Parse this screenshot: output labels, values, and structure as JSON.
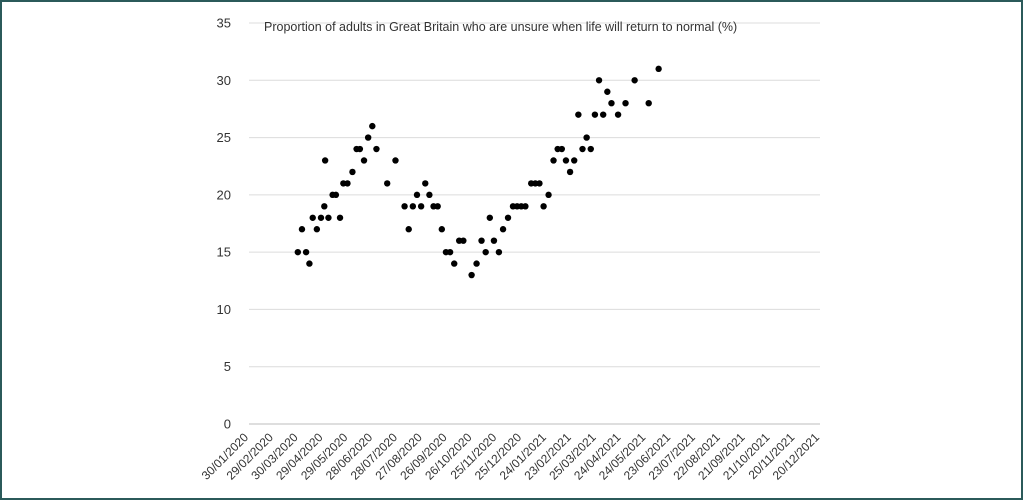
{
  "chart_data": {
    "type": "scatter",
    "title": "Proportion of adults in Great Britain who are unsure when life will return to normal (%)",
    "xlabel": "",
    "ylabel": "",
    "ylim": [
      0,
      35
    ],
    "yticks": [
      0,
      5,
      10,
      15,
      20,
      25,
      30,
      35
    ],
    "xlim": [
      "30/01/2020",
      "20/12/2021"
    ],
    "xtick_labels": [
      "30/01/2020",
      "29/02/2020",
      "30/03/2020",
      "29/04/2020",
      "29/05/2020",
      "28/06/2020",
      "28/07/2020",
      "27/08/2020",
      "26/09/2020",
      "26/10/2020",
      "25/11/2020",
      "25/12/2020",
      "24/01/2021",
      "23/02/2021",
      "25/03/2021",
      "24/04/2021",
      "24/05/2021",
      "23/06/2021",
      "23/07/2021",
      "22/08/2021",
      "21/09/2021",
      "21/10/2021",
      "20/11/2021",
      "20/12/2021"
    ],
    "grid": true,
    "legend": "none",
    "marker_color": "#000000",
    "points": [
      {
        "x": "29/03/2020",
        "y": 15
      },
      {
        "x": "03/04/2020",
        "y": 17
      },
      {
        "x": "08/04/2020",
        "y": 15
      },
      {
        "x": "12/04/2020",
        "y": 14
      },
      {
        "x": "16/04/2020",
        "y": 18
      },
      {
        "x": "21/04/2020",
        "y": 17
      },
      {
        "x": "26/04/2020",
        "y": 18
      },
      {
        "x": "30/04/2020",
        "y": 19
      },
      {
        "x": "01/05/2020",
        "y": 23
      },
      {
        "x": "05/05/2020",
        "y": 18
      },
      {
        "x": "10/05/2020",
        "y": 20
      },
      {
        "x": "14/05/2020",
        "y": 20
      },
      {
        "x": "19/05/2020",
        "y": 18
      },
      {
        "x": "23/05/2020",
        "y": 21
      },
      {
        "x": "28/05/2020",
        "y": 21
      },
      {
        "x": "03/06/2020",
        "y": 22
      },
      {
        "x": "08/06/2020",
        "y": 24
      },
      {
        "x": "12/06/2020",
        "y": 24
      },
      {
        "x": "17/06/2020",
        "y": 23
      },
      {
        "x": "22/06/2020",
        "y": 25
      },
      {
        "x": "27/06/2020",
        "y": 26
      },
      {
        "x": "02/07/2020",
        "y": 24
      },
      {
        "x": "15/07/2020",
        "y": 21
      },
      {
        "x": "25/07/2020",
        "y": 23
      },
      {
        "x": "05/08/2020",
        "y": 19
      },
      {
        "x": "10/08/2020",
        "y": 17
      },
      {
        "x": "15/08/2020",
        "y": 19
      },
      {
        "x": "20/08/2020",
        "y": 20
      },
      {
        "x": "25/08/2020",
        "y": 19
      },
      {
        "x": "30/08/2020",
        "y": 21
      },
      {
        "x": "04/09/2020",
        "y": 20
      },
      {
        "x": "09/09/2020",
        "y": 19
      },
      {
        "x": "14/09/2020",
        "y": 19
      },
      {
        "x": "19/09/2020",
        "y": 17
      },
      {
        "x": "24/09/2020",
        "y": 15
      },
      {
        "x": "29/09/2020",
        "y": 15
      },
      {
        "x": "04/10/2020",
        "y": 14
      },
      {
        "x": "10/10/2020",
        "y": 16
      },
      {
        "x": "15/10/2020",
        "y": 16
      },
      {
        "x": "25/10/2020",
        "y": 13
      },
      {
        "x": "31/10/2020",
        "y": 14
      },
      {
        "x": "06/11/2020",
        "y": 16
      },
      {
        "x": "11/11/2020",
        "y": 15
      },
      {
        "x": "16/11/2020",
        "y": 18
      },
      {
        "x": "21/11/2020",
        "y": 16
      },
      {
        "x": "27/11/2020",
        "y": 15
      },
      {
        "x": "02/12/2020",
        "y": 17
      },
      {
        "x": "08/12/2020",
        "y": 18
      },
      {
        "x": "14/12/2020",
        "y": 19
      },
      {
        "x": "19/12/2020",
        "y": 19
      },
      {
        "x": "24/12/2020",
        "y": 19
      },
      {
        "x": "29/12/2020",
        "y": 19
      },
      {
        "x": "05/01/2021",
        "y": 21
      },
      {
        "x": "10/01/2021",
        "y": 21
      },
      {
        "x": "15/01/2021",
        "y": 21
      },
      {
        "x": "20/01/2021",
        "y": 19
      },
      {
        "x": "26/01/2021",
        "y": 20
      },
      {
        "x": "01/02/2021",
        "y": 23
      },
      {
        "x": "06/02/2021",
        "y": 24
      },
      {
        "x": "11/02/2021",
        "y": 24
      },
      {
        "x": "16/02/2021",
        "y": 23
      },
      {
        "x": "21/02/2021",
        "y": 22
      },
      {
        "x": "26/02/2021",
        "y": 23
      },
      {
        "x": "03/03/2021",
        "y": 27
      },
      {
        "x": "08/03/2021",
        "y": 24
      },
      {
        "x": "13/03/2021",
        "y": 25
      },
      {
        "x": "18/03/2021",
        "y": 24
      },
      {
        "x": "23/03/2021",
        "y": 27
      },
      {
        "x": "28/03/2021",
        "y": 30
      },
      {
        "x": "02/04/2021",
        "y": 27
      },
      {
        "x": "07/04/2021",
        "y": 29
      },
      {
        "x": "12/04/2021",
        "y": 28
      },
      {
        "x": "20/04/2021",
        "y": 27
      },
      {
        "x": "29/04/2021",
        "y": 28
      },
      {
        "x": "10/05/2021",
        "y": 30
      },
      {
        "x": "27/05/2021",
        "y": 28
      },
      {
        "x": "08/06/2021",
        "y": 31
      }
    ]
  }
}
